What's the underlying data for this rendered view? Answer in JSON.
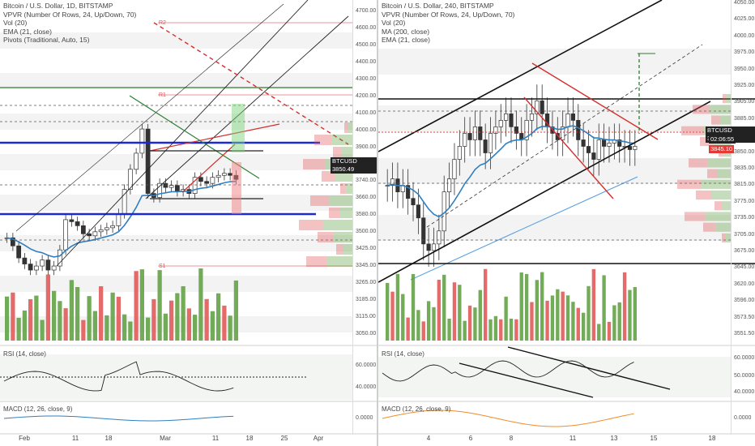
{
  "colors": {
    "up": "#5a9e3c",
    "down": "#e05050",
    "ema": "#2f7fc1",
    "ma": "#5aa0e0",
    "blue_line": "#1a2bd6"
  },
  "left_chart": {
    "legend": [
      "Bitcoin / U.S. Dollar, 1D, BITSTAMP",
      "VPVR (Number Of Rows, 24, Up/Down, 70)",
      "Vol (20)",
      "EMA (21, close)",
      "Pivots (Traditional, Auto, 15)"
    ],
    "price_ticks": [
      "4700.00",
      "4600.00",
      "4500.00",
      "4400.00",
      "4300.00",
      "4200.00",
      "4100.00",
      "4000.00",
      "3900.00",
      "3820.00",
      "3740.00",
      "3660.00",
      "3580.00",
      "3500.00",
      "3425.00",
      "3345.00",
      "3265.00",
      "3185.00",
      "3115.00",
      "3050.00"
    ],
    "price_tag": "BTCUSD 3850.49",
    "pivot_labels": [
      "R2",
      "R1",
      "S1"
    ],
    "rsi_label": "RSI (14, close)",
    "rsi_ticks": [
      "60.0000",
      "40.0000"
    ],
    "macd_label": "MACD (12, 26, close, 9)",
    "macd_ticks": [
      "0.0000"
    ],
    "x_labels": [
      "Feb",
      "11",
      "18",
      "Mar",
      "11",
      "18",
      "25",
      "Apr"
    ]
  },
  "right_chart": {
    "legend": [
      "Bitcoin / U.S. Dollar, 240, BITSTAMP",
      "VPVR (Number Of Rows, 24, Up/Down, 70)",
      "Vol (20)",
      "MA (200, close)",
      "EMA (21, close)"
    ],
    "price_ticks": [
      "4050.00",
      "4025.00",
      "4000.00",
      "3975.00",
      "3950.00",
      "3925.00",
      "3905.00",
      "3885.00",
      "3870.00",
      "3850.00",
      "3835.00",
      "3815.00",
      "3775.00",
      "3735.00",
      "3705.00",
      "3675.00",
      "3645.00",
      "3620.00",
      "3596.00",
      "3573.50",
      "3551.50"
    ],
    "price_tag_1": "BTCUSD 3850.49",
    "price_tag_2": "02:06:55",
    "price_tag_3": "3845.10",
    "rsi_label": "RSI (14, close)",
    "rsi_ticks": [
      "60.0000",
      "50.0000",
      "40.0000"
    ],
    "macd_label": "MACD (12, 26, close, 9)",
    "macd_ticks": [
      "0.0000"
    ],
    "x_labels": [
      "4",
      "6",
      "8",
      "11",
      "13",
      "15",
      "18"
    ]
  },
  "chart_data": [
    {
      "type": "candlestick",
      "title": "Bitcoin / U.S. Dollar, 1D, BITSTAMP",
      "x_labels": [
        "Feb",
        "11",
        "18",
        "Mar",
        "11",
        "18",
        "25",
        "Apr"
      ],
      "y_range": [
        3050,
        4700
      ],
      "last_price": 3850.49,
      "close_approx": [
        3560,
        3520,
        3460,
        3430,
        3400,
        3420,
        3450,
        3400,
        3420,
        3500,
        3650,
        3640,
        3620,
        3580,
        3570,
        3590,
        3600,
        3610,
        3620,
        3680,
        3800,
        3900,
        3980,
        4100,
        3780,
        3760,
        3830,
        3810,
        3820,
        3790,
        3800,
        3780,
        3860,
        3840,
        3830,
        3860,
        3870,
        3880,
        3870,
        3850
      ]
    },
    {
      "type": "candlestick",
      "title": "Bitcoin / U.S. Dollar, 240, BITSTAMP",
      "x_labels": [
        "4",
        "6",
        "8",
        "11",
        "13",
        "15",
        "18"
      ],
      "y_range": [
        3551.5,
        4050
      ],
      "last_price": 3850.49,
      "close_approx": [
        3790,
        3800,
        3780,
        3790,
        3770,
        3760,
        3740,
        3700,
        3690,
        3700,
        3720,
        3780,
        3800,
        3830,
        3850,
        3870,
        3860,
        3880,
        3860,
        3840,
        3870,
        3880,
        3890,
        3900,
        3880,
        3870,
        3860,
        3890,
        3900,
        3920,
        3900,
        3880,
        3870,
        3860,
        3880,
        3900,
        3890,
        3860,
        3850,
        3840,
        3830,
        3860,
        3850,
        3855,
        3860,
        3850,
        3850,
        3845,
        3850
      ]
    }
  ]
}
